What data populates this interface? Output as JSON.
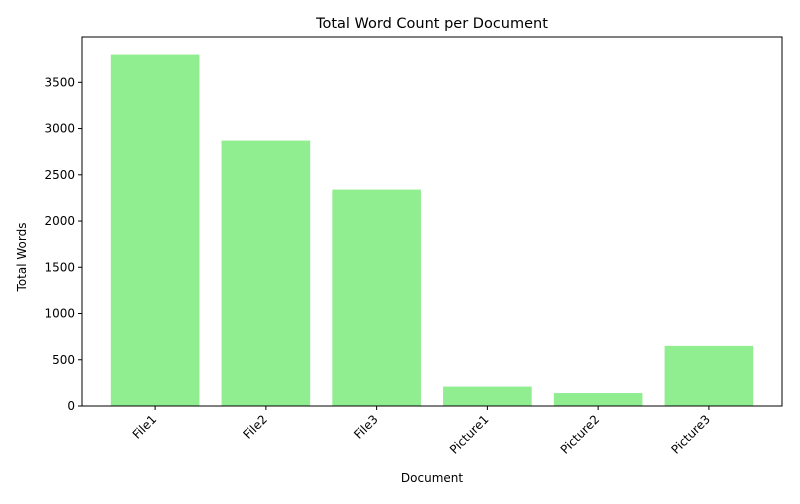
{
  "chart_data": {
    "type": "bar",
    "title": "Total Word Count per Document",
    "xlabel": "Document",
    "ylabel": "Total Words",
    "categories": [
      "File1",
      "File2",
      "File3",
      "Picture1",
      "Picture2",
      "Picture3"
    ],
    "values": [
      3800,
      2870,
      2340,
      210,
      140,
      650
    ],
    "ylim": [
      0,
      3990
    ],
    "yticks": [
      0,
      500,
      1000,
      1500,
      2000,
      2500,
      3000,
      3500
    ],
    "bar_color": "#90ee90",
    "grid": false,
    "legend": "none"
  }
}
